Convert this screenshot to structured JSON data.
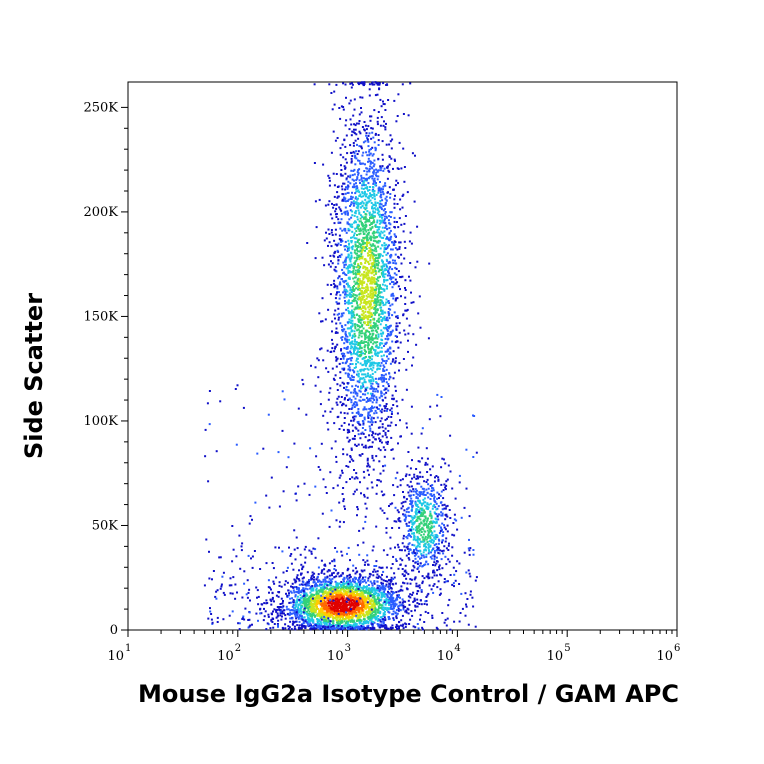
{
  "chart_data": {
    "type": "scatter",
    "subtype": "flow-cytometry density dot plot",
    "xlabel": "Mouse IgG2a Isotype Control / GAM APC",
    "ylabel": "Side Scatter",
    "x_scale": "log",
    "xlim": [
      10,
      1000000
    ],
    "ylim": [
      0,
      262144
    ],
    "x_ticks": [
      {
        "value": 10,
        "base": "10",
        "exp": "1"
      },
      {
        "value": 100,
        "base": "10",
        "exp": "2"
      },
      {
        "value": 1000,
        "base": "10",
        "exp": "3"
      },
      {
        "value": 10000,
        "base": "10",
        "exp": "4"
      },
      {
        "value": 100000,
        "base": "10",
        "exp": "5"
      },
      {
        "value": 1000000,
        "base": "10",
        "exp": "6"
      }
    ],
    "y_ticks": [
      {
        "value": 0,
        "label": "0"
      },
      {
        "value": 50000,
        "label": "50K"
      },
      {
        "value": 100000,
        "label": "100K"
      },
      {
        "value": 150000,
        "label": "150K"
      },
      {
        "value": 200000,
        "label": "200K"
      },
      {
        "value": 250000,
        "label": "250K"
      }
    ],
    "color_scale": [
      "#1010c8",
      "#2a5cff",
      "#1ec8e6",
      "#33d17a",
      "#c8e61e",
      "#ffcc00",
      "#ff6a00",
      "#e00000"
    ],
    "populations": [
      {
        "x_center": 900,
        "x_spread_decades": 0.28,
        "y_center": 12000,
        "y_spread": 7000,
        "count": 2600,
        "peak_density": 1.0
      },
      {
        "x_center": 1500,
        "x_spread_decades": 0.16,
        "y_center": 165000,
        "y_spread": 42000,
        "count": 3000,
        "peak_density": 0.55
      },
      {
        "x_center": 5000,
        "x_spread_decades": 0.12,
        "y_center": 50000,
        "y_spread": 13000,
        "count": 650,
        "peak_density": 0.45
      }
    ],
    "grid": false,
    "legend": "none"
  }
}
